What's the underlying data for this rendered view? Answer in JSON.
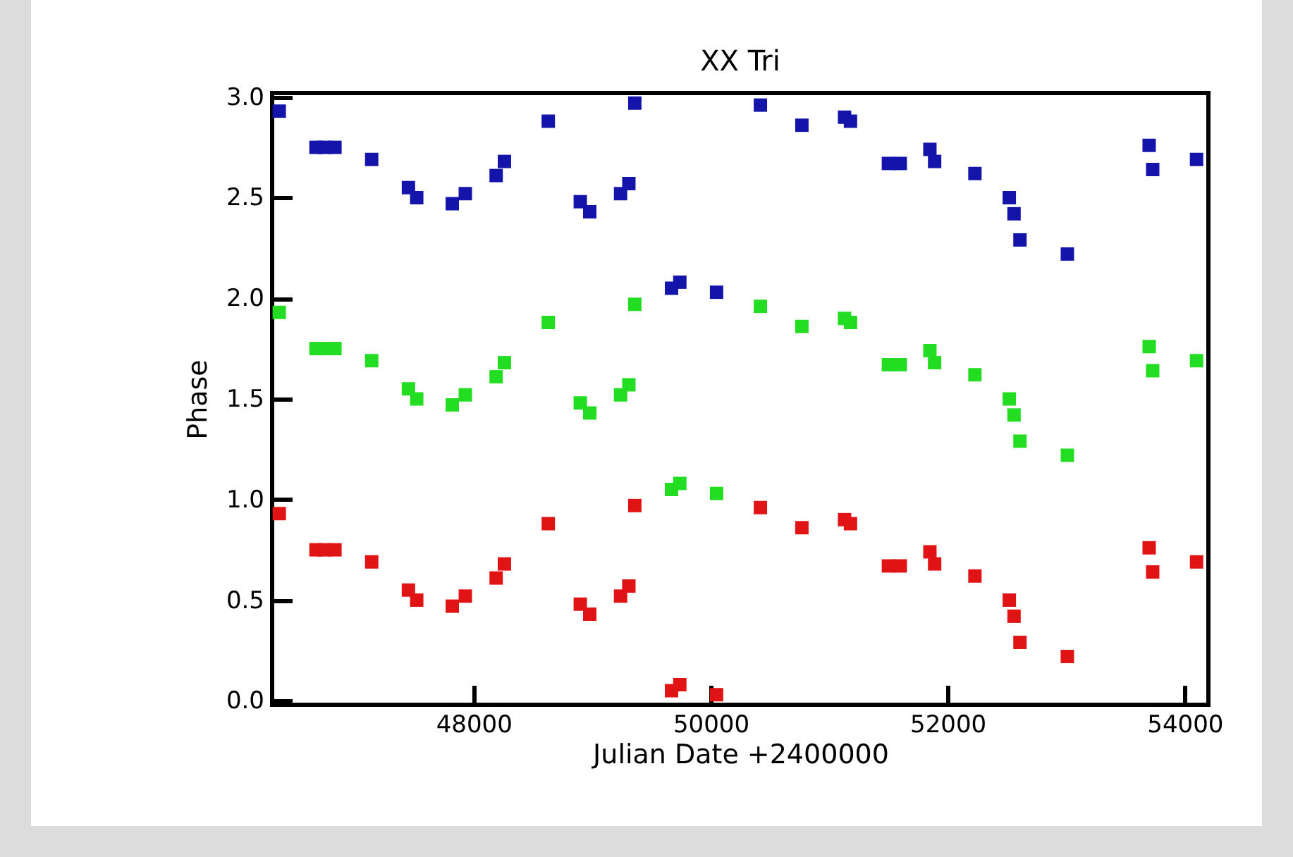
{
  "chart_data": {
    "type": "scatter",
    "title": "XX Tri",
    "xlabel": "Julian Date +2400000",
    "ylabel": "Phase",
    "xlim": [
      46300,
      54200
    ],
    "xticks": [
      48000,
      50000,
      52000,
      54000
    ],
    "ylim": [
      -0.02,
      3.02
    ],
    "yticks": [
      {
        "value": 0,
        "label": "0.0"
      },
      0.5,
      {
        "value": 1,
        "label": "1.0"
      },
      1.5,
      {
        "value": 2,
        "label": "2.0"
      },
      2.5,
      {
        "value": 3,
        "label": "3.0"
      }
    ],
    "grid": false,
    "marker": "square",
    "x": [
      46360,
      46670,
      46740,
      46830,
      47140,
      47450,
      47520,
      47820,
      47930,
      48190,
      48260,
      48630,
      48900,
      48980,
      49240,
      49310,
      49360,
      49670,
      49740,
      50050,
      50420,
      50770,
      51130,
      51180,
      51500,
      51600,
      51850,
      51890,
      52230,
      52520,
      52560,
      52610,
      53010,
      53700,
      53730,
      54100
    ],
    "series": [
      {
        "color": "#e01414",
        "values": [
          0.93,
          0.75,
          0.75,
          0.75,
          0.69,
          0.55,
          0.5,
          0.47,
          0.52,
          0.61,
          0.68,
          0.88,
          0.48,
          0.43,
          0.52,
          0.57,
          0.97,
          0.05,
          0.08,
          0.03,
          0.96,
          0.86,
          0.9,
          0.88,
          0.67,
          0.67,
          0.74,
          0.68,
          0.62,
          0.5,
          0.42,
          0.29,
          0.22,
          0.76,
          0.64,
          0.69
        ]
      },
      {
        "color": "#22dd22",
        "values": [
          1.93,
          1.75,
          1.75,
          1.75,
          1.69,
          1.55,
          1.5,
          1.47,
          1.52,
          1.61,
          1.68,
          1.88,
          1.48,
          1.43,
          1.52,
          1.57,
          1.97,
          1.05,
          1.08,
          1.03,
          1.96,
          1.86,
          1.9,
          1.88,
          1.67,
          1.67,
          1.74,
          1.68,
          1.62,
          1.5,
          1.42,
          1.29,
          1.22,
          1.76,
          1.64,
          1.69
        ]
      },
      {
        "color": "#1414aa",
        "values": [
          2.93,
          2.75,
          2.75,
          2.75,
          2.69,
          2.55,
          2.5,
          2.47,
          2.52,
          2.61,
          2.68,
          2.88,
          2.48,
          2.43,
          2.52,
          2.57,
          2.97,
          2.05,
          2.08,
          2.03,
          2.96,
          2.86,
          2.9,
          2.88,
          2.67,
          2.67,
          2.74,
          2.68,
          2.62,
          2.5,
          2.42,
          2.29,
          2.22,
          2.76,
          2.64,
          2.69
        ]
      }
    ]
  }
}
